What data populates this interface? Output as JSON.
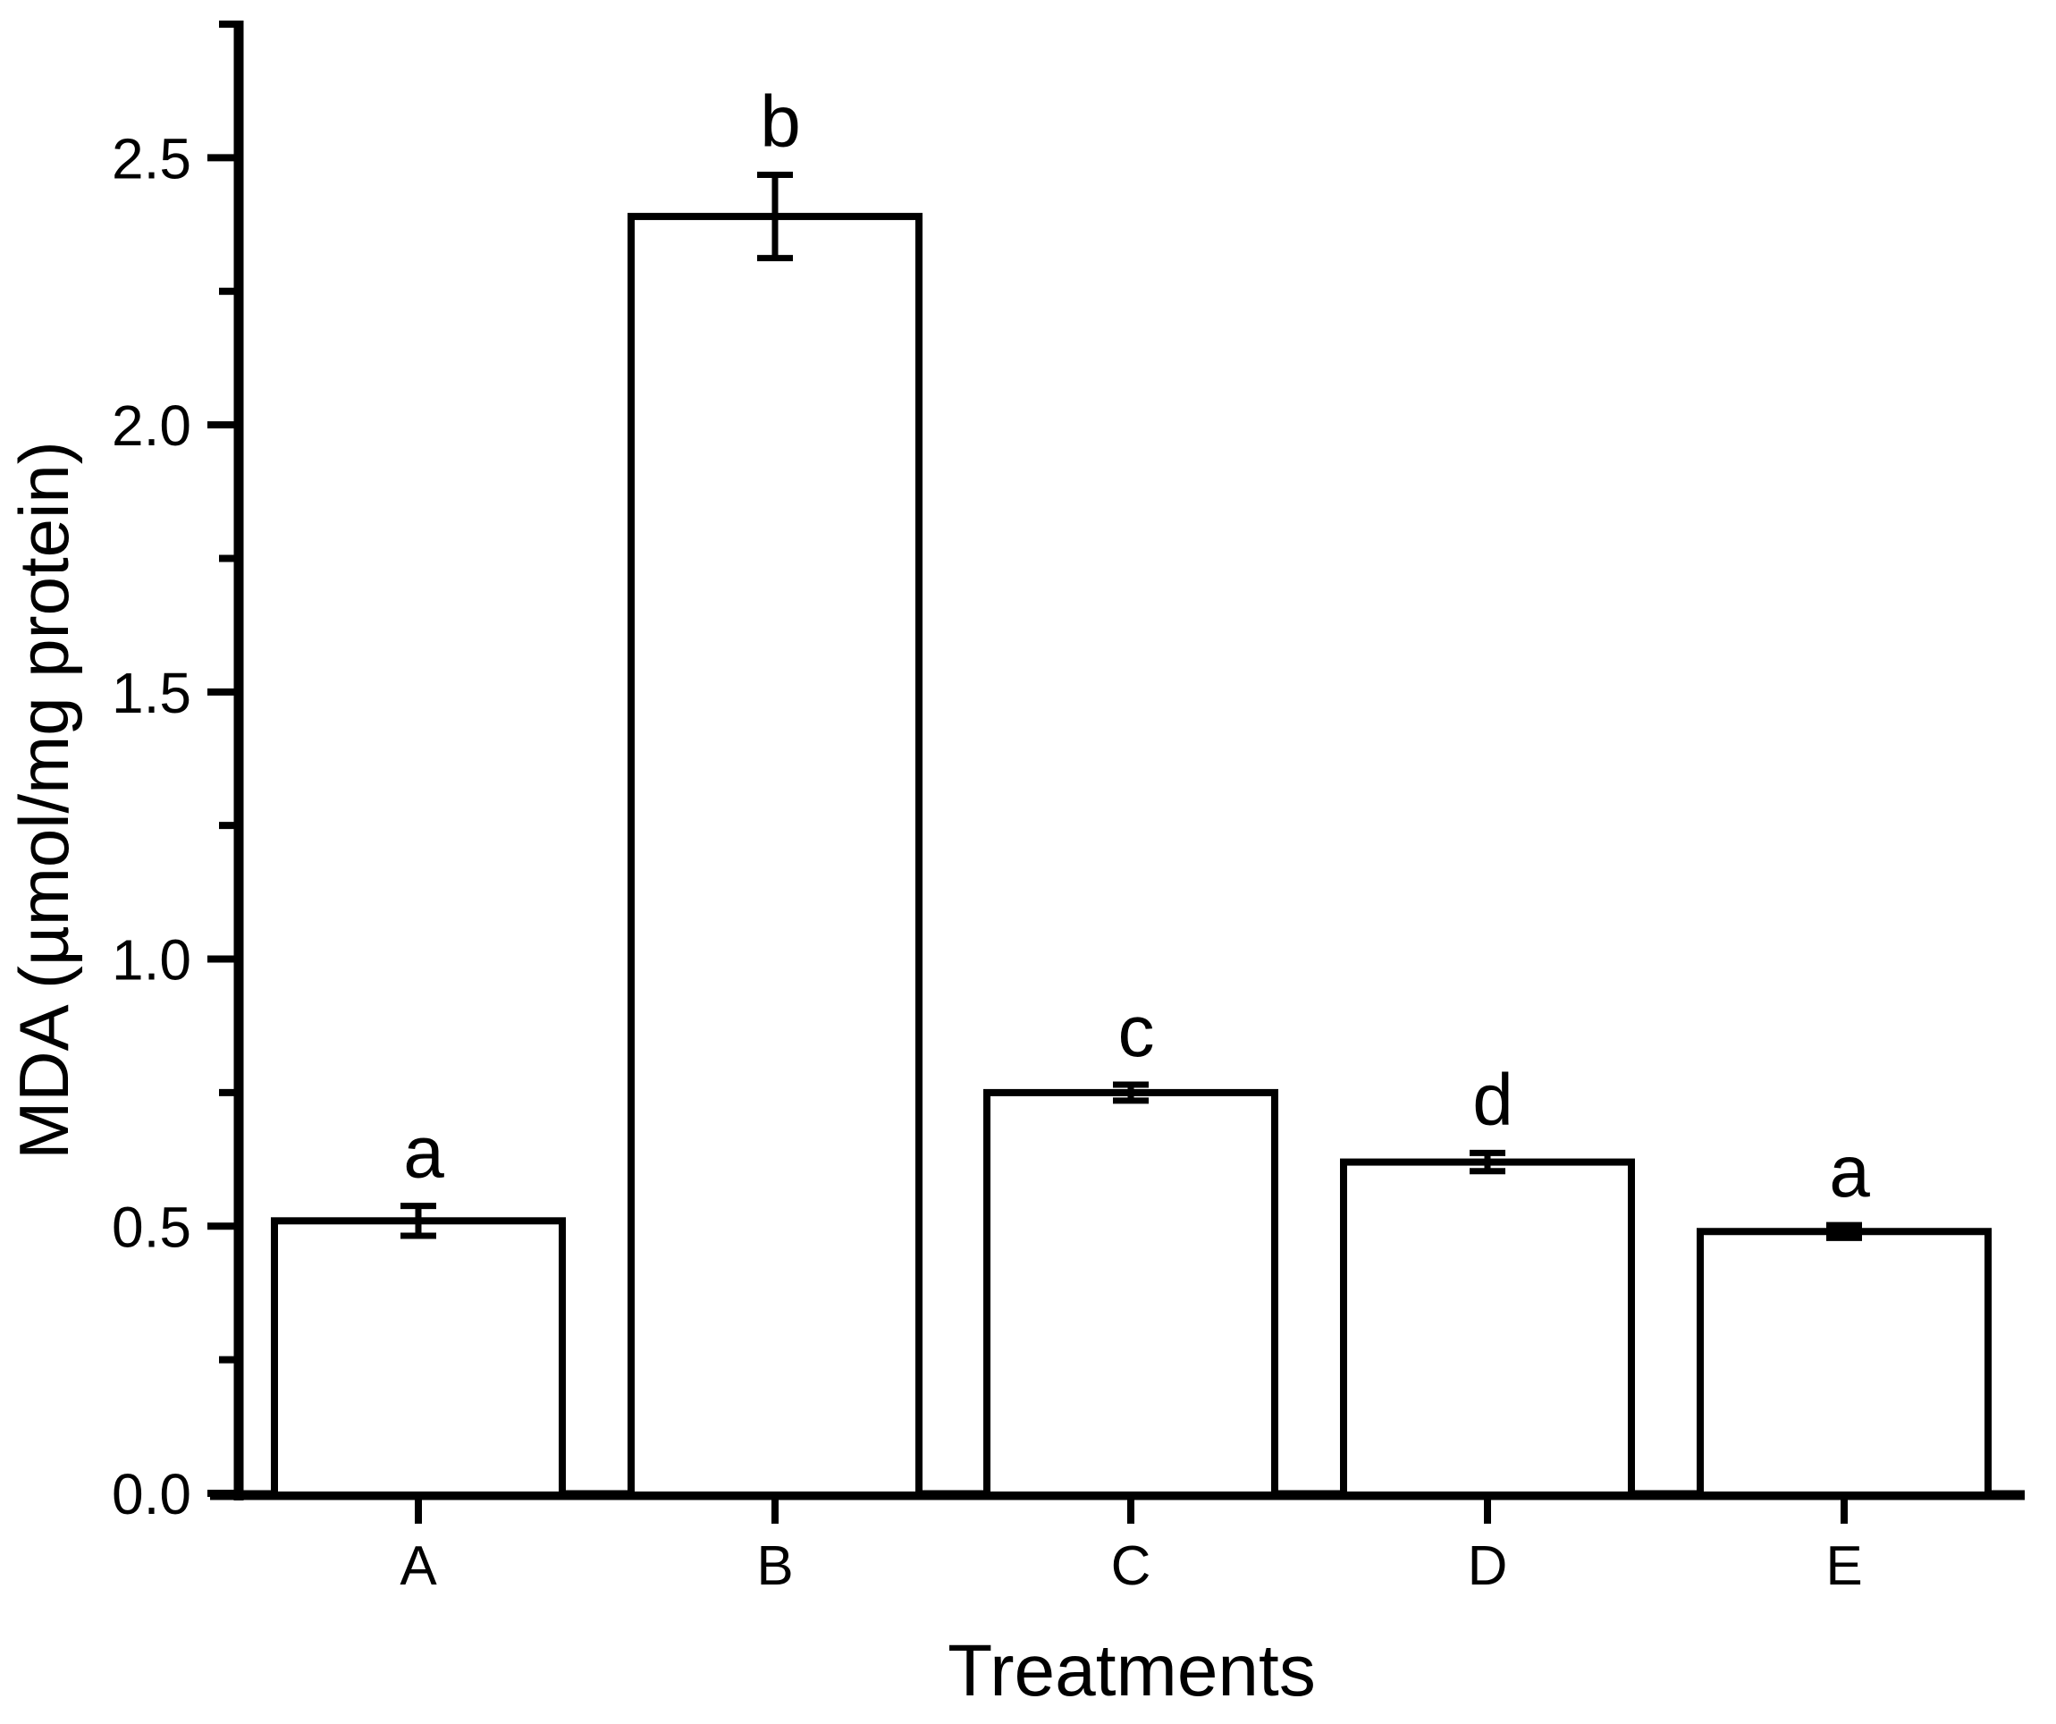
{
  "chart_data": {
    "type": "bar",
    "title": "",
    "xlabel": "Treatments",
    "ylabel": "MDA (µmol/mg protein)",
    "categories": [
      "A",
      "B",
      "C",
      "D",
      "E"
    ],
    "values": [
      0.51,
      2.39,
      0.75,
      0.62,
      0.49
    ],
    "errors": [
      0.028,
      0.078,
      0.015,
      0.017,
      0.012
    ],
    "sig_letters": [
      "a",
      "b",
      "c",
      "d",
      "a"
    ],
    "ylim": [
      0,
      2.75
    ],
    "ytick_major": [
      0.0,
      0.5,
      1.0,
      1.5,
      2.0,
      2.5
    ],
    "ytick_minor": [
      0.25,
      0.75,
      1.25,
      1.75,
      2.25,
      2.75
    ],
    "ytick_decimals": 1,
    "grid": "off",
    "legend": "none",
    "bar_fill": "#ffffff",
    "line_color": "#000000",
    "background": "#ffffff"
  }
}
